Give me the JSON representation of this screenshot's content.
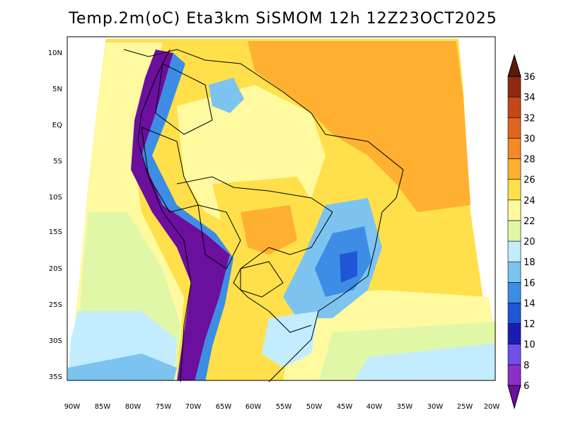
{
  "title": "Temp.2m(oC) Eta3km SiSMOM 12h 12Z23OCT2025",
  "latitude_labels": [
    "10N",
    "5N",
    "EQ",
    "5S",
    "10S",
    "15S",
    "20S",
    "25S",
    "30S",
    "35S"
  ],
  "longitude_labels": [
    "90W",
    "85W",
    "80W",
    "75W",
    "70W",
    "65W",
    "60W",
    "55W",
    "50W",
    "45W",
    "40W",
    "35W",
    "30W",
    "25W",
    "20W"
  ],
  "colorbar": {
    "labels": [
      "6",
      "8",
      "10",
      "12",
      "14",
      "16",
      "18",
      "20",
      "22",
      "24",
      "26",
      "28",
      "30",
      "32",
      "34",
      "36"
    ],
    "colors": [
      "#6a0f9e",
      "#8a2fc7",
      "#7050e8",
      "#1c1cb3",
      "#1e56d6",
      "#3d8de6",
      "#7cc3f0",
      "#c3ecff",
      "#e0f7a8",
      "#fff9a0",
      "#ffe04a",
      "#ffb030",
      "#f28a26",
      "#e06620",
      "#c44716",
      "#8f2a0e",
      "#5c1a08"
    ]
  },
  "colors": {
    "ocean_warm": "#ffc040",
    "ocean_mild": "#fff9a0",
    "ocean_cool": "#c3ecff",
    "andes_cold": "#6a0f9e"
  }
}
